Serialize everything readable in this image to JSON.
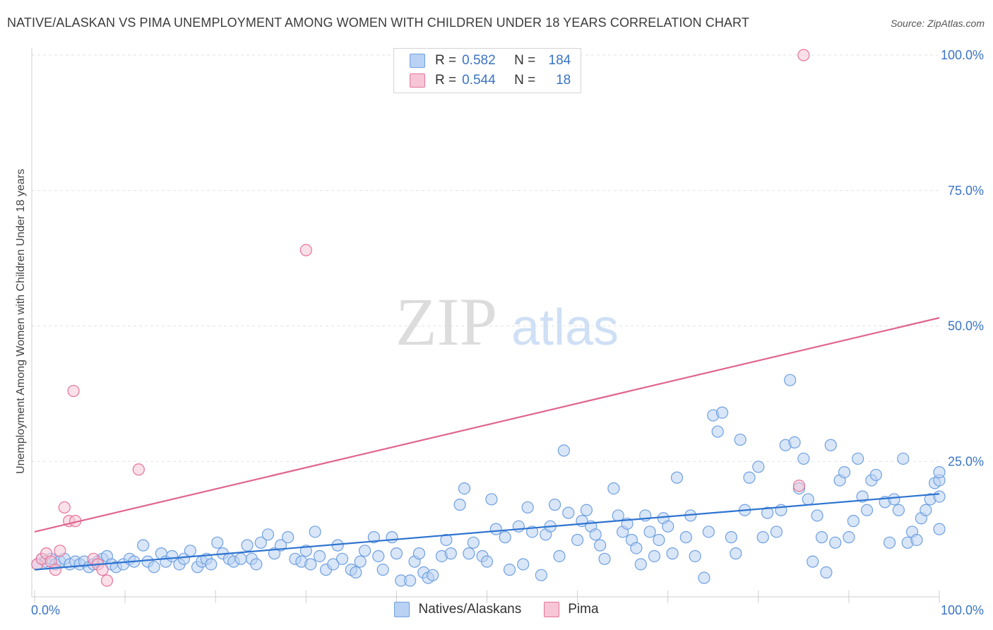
{
  "title": "NATIVE/ALASKAN VS PIMA UNEMPLOYMENT AMONG WOMEN WITH CHILDREN UNDER 18 YEARS CORRELATION CHART",
  "source": "Source: ZipAtlas.com",
  "watermark": {
    "zip": "ZIP",
    "atlas": "atlas"
  },
  "colors": {
    "native": "#6fa0e0",
    "native_fill": "#b9d1f3",
    "pima": "#e6739a",
    "pima_fill": "#f6c6d6",
    "axis_label": "#3a74c4"
  },
  "legend": {
    "rows": [
      {
        "r_label": "R =",
        "r_value": "0.582",
        "n_label": "N =",
        "n_value": "184"
      },
      {
        "r_label": "R =",
        "r_value": "0.544",
        "n_label": "N =",
        "n_value": "18"
      }
    ]
  },
  "bottom_legend": [
    "Natives/Alaskans",
    "Pima"
  ],
  "chart_data": {
    "type": "scatter",
    "title": "NATIVE/ALASKAN VS PIMA UNEMPLOYMENT AMONG WOMEN WITH CHILDREN UNDER 18 YEARS CORRELATION CHART",
    "xlabel": "",
    "ylabel": "Unemployment Among Women with Children Under 18 years",
    "xlim": [
      0,
      100
    ],
    "ylim": [
      0,
      100
    ],
    "x_tick_labels": [
      "0.0%",
      "100.0%"
    ],
    "y_tick_labels": [
      "25.0%",
      "50.0%",
      "75.0%",
      "100.0%"
    ],
    "grid": true,
    "legend_position": "top-center",
    "series": [
      {
        "name": "Natives/Alaskans",
        "r": 0.582,
        "n": 184,
        "trend": {
          "x": [
            0,
            100
          ],
          "y": [
            5.0,
            19.0
          ]
        },
        "points": [
          [
            0.3,
            6
          ],
          [
            0.8,
            7
          ],
          [
            1.2,
            6.5
          ],
          [
            1.8,
            7
          ],
          [
            2.3,
            6
          ],
          [
            2.8,
            6.5
          ],
          [
            3.3,
            7
          ],
          [
            3.9,
            6
          ],
          [
            4.5,
            6.5
          ],
          [
            5.0,
            6
          ],
          [
            5.5,
            6.5
          ],
          [
            6.0,
            5.5
          ],
          [
            6.5,
            6
          ],
          [
            7.0,
            6.5
          ],
          [
            7.5,
            7
          ],
          [
            8.0,
            7.5
          ],
          [
            8.5,
            6
          ],
          [
            9.0,
            5.5
          ],
          [
            9.8,
            6
          ],
          [
            10.5,
            7
          ],
          [
            11.0,
            6.5
          ],
          [
            12.0,
            9.5
          ],
          [
            12.5,
            6.5
          ],
          [
            13.2,
            5.5
          ],
          [
            14.0,
            8
          ],
          [
            14.5,
            6.5
          ],
          [
            15.2,
            7.5
          ],
          [
            16.0,
            6
          ],
          [
            16.5,
            7
          ],
          [
            17.2,
            8.5
          ],
          [
            18.0,
            5.5
          ],
          [
            18.5,
            6.5
          ],
          [
            19.0,
            7
          ],
          [
            19.5,
            6
          ],
          [
            20.2,
            10
          ],
          [
            20.8,
            8
          ],
          [
            21.5,
            7
          ],
          [
            22.0,
            6.5
          ],
          [
            22.8,
            7
          ],
          [
            23.5,
            9.5
          ],
          [
            24.0,
            7
          ],
          [
            24.5,
            6
          ],
          [
            25.0,
            10
          ],
          [
            25.8,
            11.5
          ],
          [
            26.5,
            8
          ],
          [
            27.2,
            9.5
          ],
          [
            28.0,
            11
          ],
          [
            28.8,
            7
          ],
          [
            29.5,
            6.5
          ],
          [
            30.0,
            8.5
          ],
          [
            30.5,
            6
          ],
          [
            31.0,
            12
          ],
          [
            31.5,
            7.5
          ],
          [
            32.2,
            5
          ],
          [
            33.0,
            6
          ],
          [
            33.5,
            9.5
          ],
          [
            34.0,
            7
          ],
          [
            35.0,
            5
          ],
          [
            35.5,
            4.5
          ],
          [
            36.0,
            6.5
          ],
          [
            36.5,
            8.5
          ],
          [
            37.5,
            11
          ],
          [
            38.0,
            7.5
          ],
          [
            38.5,
            5
          ],
          [
            39.5,
            11
          ],
          [
            40.0,
            8
          ],
          [
            40.5,
            3
          ],
          [
            41.5,
            3
          ],
          [
            42.0,
            6.5
          ],
          [
            42.5,
            8
          ],
          [
            43.0,
            4.5
          ],
          [
            43.5,
            3.5
          ],
          [
            44.0,
            4
          ],
          [
            45.0,
            7.5
          ],
          [
            45.5,
            10.5
          ],
          [
            46.0,
            8
          ],
          [
            47.0,
            17
          ],
          [
            47.5,
            20
          ],
          [
            48.0,
            8
          ],
          [
            48.5,
            10
          ],
          [
            49.5,
            7.5
          ],
          [
            50.0,
            6.5
          ],
          [
            50.5,
            18
          ],
          [
            51.0,
            12.5
          ],
          [
            52.0,
            11
          ],
          [
            52.5,
            5
          ],
          [
            53.5,
            13
          ],
          [
            54.0,
            6
          ],
          [
            54.5,
            16.5
          ],
          [
            55.0,
            12
          ],
          [
            56.0,
            4
          ],
          [
            56.5,
            11.5
          ],
          [
            57.0,
            13
          ],
          [
            57.5,
            17
          ],
          [
            58.0,
            7.5
          ],
          [
            58.5,
            27
          ],
          [
            59.0,
            15.5
          ],
          [
            60.0,
            10.5
          ],
          [
            60.5,
            14
          ],
          [
            61.0,
            16
          ],
          [
            61.5,
            13
          ],
          [
            62.0,
            11.5
          ],
          [
            62.5,
            9.5
          ],
          [
            63.0,
            7
          ],
          [
            64.0,
            20
          ],
          [
            64.5,
            15
          ],
          [
            65.0,
            12
          ],
          [
            65.5,
            13.5
          ],
          [
            66.0,
            10.5
          ],
          [
            66.5,
            9
          ],
          [
            67.0,
            6
          ],
          [
            67.5,
            15
          ],
          [
            68.0,
            12
          ],
          [
            68.5,
            7.5
          ],
          [
            69.0,
            10.5
          ],
          [
            69.5,
            14.5
          ],
          [
            70.0,
            13
          ],
          [
            70.5,
            8
          ],
          [
            71.0,
            22
          ],
          [
            72.0,
            11
          ],
          [
            72.5,
            15
          ],
          [
            73.0,
            7.5
          ],
          [
            74.0,
            3.5
          ],
          [
            74.5,
            12
          ],
          [
            75.0,
            33.5
          ],
          [
            75.5,
            30.5
          ],
          [
            76.0,
            34
          ],
          [
            77.0,
            11
          ],
          [
            77.5,
            8
          ],
          [
            78.0,
            29
          ],
          [
            78.5,
            16
          ],
          [
            79.0,
            22
          ],
          [
            80.0,
            24
          ],
          [
            80.5,
            11
          ],
          [
            81.0,
            15.5
          ],
          [
            82.0,
            12
          ],
          [
            82.5,
            16
          ],
          [
            83.0,
            28
          ],
          [
            83.5,
            40
          ],
          [
            84.0,
            28.5
          ],
          [
            84.5,
            20
          ],
          [
            85.0,
            25.5
          ],
          [
            85.5,
            18
          ],
          [
            86.0,
            6.5
          ],
          [
            86.5,
            15
          ],
          [
            87.0,
            11
          ],
          [
            87.5,
            4.5
          ],
          [
            88.0,
            28
          ],
          [
            88.5,
            10
          ],
          [
            89.0,
            21.5
          ],
          [
            89.5,
            23
          ],
          [
            90.0,
            11
          ],
          [
            90.5,
            14
          ],
          [
            91.0,
            25.5
          ],
          [
            91.5,
            18.5
          ],
          [
            92.0,
            16
          ],
          [
            92.5,
            21.5
          ],
          [
            93.0,
            22.5
          ],
          [
            94.0,
            17.5
          ],
          [
            94.5,
            10
          ],
          [
            95.0,
            18
          ],
          [
            95.5,
            16
          ],
          [
            96.0,
            25.5
          ],
          [
            96.5,
            10
          ],
          [
            97.0,
            12
          ],
          [
            97.5,
            10.5
          ],
          [
            98.0,
            14.5
          ],
          [
            98.5,
            16
          ],
          [
            99.0,
            18
          ],
          [
            99.5,
            21
          ],
          [
            100,
            12.5
          ],
          [
            100,
            18.5
          ],
          [
            100,
            21.5
          ],
          [
            100,
            23
          ]
        ]
      },
      {
        "name": "Pima",
        "r": 0.544,
        "n": 18,
        "trend": {
          "x": [
            0,
            100
          ],
          "y": [
            12.0,
            51.5
          ]
        },
        "points": [
          [
            0.3,
            6
          ],
          [
            0.8,
            7
          ],
          [
            1.3,
            8
          ],
          [
            1.8,
            6.5
          ],
          [
            2.3,
            5
          ],
          [
            2.8,
            8.5
          ],
          [
            3.3,
            16.5
          ],
          [
            3.8,
            14
          ],
          [
            4.3,
            38
          ],
          [
            4.5,
            14
          ],
          [
            6.5,
            7
          ],
          [
            7.0,
            6
          ],
          [
            7.5,
            5
          ],
          [
            8.0,
            3
          ],
          [
            11.5,
            23.5
          ],
          [
            30.0,
            64
          ],
          [
            84.5,
            20.5
          ],
          [
            85.0,
            100
          ]
        ]
      }
    ]
  }
}
